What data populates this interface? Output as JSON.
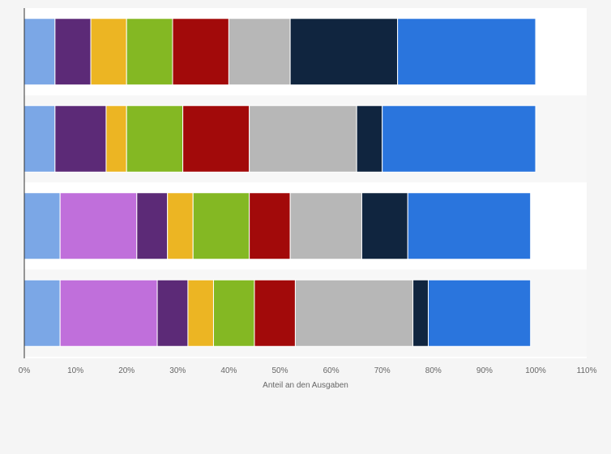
{
  "chart_data": {
    "type": "bar",
    "orientation": "horizontal",
    "stacked": true,
    "xlabel": "Anteil an den Ausgaben",
    "ylabel": "",
    "xlim": [
      0,
      110
    ],
    "x_ticks": [
      "0%",
      "10%",
      "20%",
      "30%",
      "40%",
      "50%",
      "60%",
      "70%",
      "80%",
      "90%",
      "100%",
      "110%"
    ],
    "categories": [
      "",
      "",
      "",
      ""
    ],
    "grid": false,
    "legend": "none",
    "series": [
      {
        "color": "#7ba7e6",
        "values": [
          6,
          6,
          7,
          7
        ]
      },
      {
        "color": "#c06fdb",
        "values": [
          0,
          0,
          15,
          19
        ]
      },
      {
        "color": "#5c2a77",
        "values": [
          7,
          10,
          6,
          6
        ]
      },
      {
        "color": "#ecb523",
        "values": [
          7,
          4,
          5,
          5
        ]
      },
      {
        "color": "#84b823",
        "values": [
          9,
          11,
          11,
          8
        ]
      },
      {
        "color": "#a20a0a",
        "values": [
          11,
          13,
          8,
          8
        ]
      },
      {
        "color": "#b7b7b7",
        "values": [
          12,
          21,
          14,
          23
        ]
      },
      {
        "color": "#10253f",
        "values": [
          21,
          5,
          9,
          3
        ]
      },
      {
        "color": "#2a75dd",
        "values": [
          27,
          30,
          24,
          20
        ]
      }
    ]
  }
}
